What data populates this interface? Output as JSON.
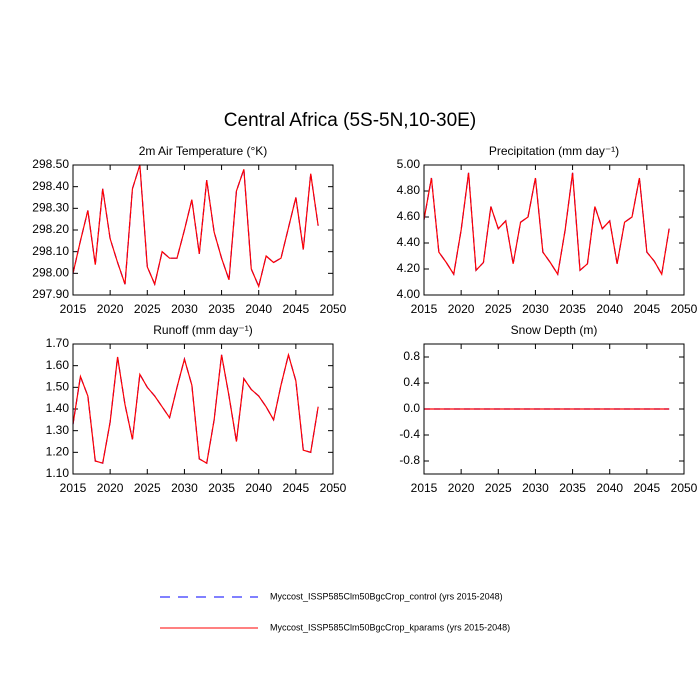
{
  "title": "Central Africa (5S-5N,10-30E)",
  "legend": [
    {
      "name": "Myccost_ISSP585Clm50BgcCrop_control (yrs 2015-2048)",
      "color": "#0000ff",
      "dashed": true
    },
    {
      "name": "Myccost_ISSP585Clm50BgcCrop_kparams (yrs 2015-2048)",
      "color": "#ff0000",
      "dashed": false
    }
  ],
  "chart_data": [
    {
      "type": "line",
      "title": "2m Air Temperature (°K)",
      "x": [
        2015,
        2016,
        2017,
        2018,
        2019,
        2020,
        2021,
        2022,
        2023,
        2024,
        2025,
        2026,
        2027,
        2028,
        2029,
        2030,
        2031,
        2032,
        2033,
        2034,
        2035,
        2036,
        2037,
        2038,
        2039,
        2040,
        2041,
        2042,
        2043,
        2044,
        2045,
        2046,
        2047,
        2048
      ],
      "series": [
        {
          "values": [
            298.0,
            298.15,
            298.29,
            298.04,
            298.39,
            298.16,
            298.05,
            297.95,
            298.39,
            298.5,
            298.03,
            297.95,
            298.1,
            298.07,
            298.07,
            298.2,
            298.34,
            298.09,
            298.43,
            298.19,
            298.07,
            297.97,
            298.38,
            298.48,
            298.02,
            297.94,
            298.08,
            298.05,
            298.07,
            298.21,
            298.35,
            298.11,
            298.46,
            298.22
          ]
        },
        {
          "values": [
            298.0,
            298.15,
            298.29,
            298.04,
            298.39,
            298.16,
            298.05,
            297.95,
            298.39,
            298.5,
            298.03,
            297.95,
            298.1,
            298.07,
            298.07,
            298.2,
            298.34,
            298.09,
            298.43,
            298.19,
            298.07,
            297.97,
            298.38,
            298.48,
            298.02,
            297.94,
            298.08,
            298.05,
            298.07,
            298.21,
            298.35,
            298.11,
            298.46,
            298.22
          ]
        }
      ],
      "xlim": [
        2015,
        2050
      ],
      "xticks": [
        2015,
        2020,
        2025,
        2030,
        2035,
        2040,
        2045,
        2050
      ],
      "ylim": [
        297.9,
        298.5
      ],
      "yticks": [
        {
          "value": 297.9,
          "label": "297.90"
        },
        {
          "value": 298.0,
          "label": "298.00"
        },
        {
          "value": 298.1,
          "label": "298.10"
        },
        {
          "value": 298.2,
          "label": "298.20"
        },
        {
          "value": 298.3,
          "label": "298.30"
        },
        {
          "value": 298.4,
          "label": "298.40"
        },
        {
          "value": 298.5,
          "label": "298.50"
        }
      ]
    },
    {
      "type": "line",
      "title": "Precipitation (mm day⁻¹)",
      "x": [
        2015,
        2016,
        2017,
        2018,
        2019,
        2020,
        2021,
        2022,
        2023,
        2024,
        2025,
        2026,
        2027,
        2028,
        2029,
        2030,
        2031,
        2032,
        2033,
        2034,
        2035,
        2036,
        2037,
        2038,
        2039,
        2040,
        2041,
        2042,
        2043,
        2044,
        2045,
        2046,
        2047,
        2048
      ],
      "series": [
        {
          "values": [
            4.58,
            4.9,
            4.33,
            4.25,
            4.16,
            4.5,
            4.94,
            4.19,
            4.25,
            4.68,
            4.51,
            4.57,
            4.24,
            4.56,
            4.6,
            4.9,
            4.33,
            4.25,
            4.16,
            4.5,
            4.94,
            4.19,
            4.24,
            4.68,
            4.51,
            4.57,
            4.24,
            4.56,
            4.6,
            4.9,
            4.33,
            4.26,
            4.16,
            4.51
          ]
        },
        {
          "values": [
            4.58,
            4.9,
            4.33,
            4.25,
            4.16,
            4.5,
            4.94,
            4.19,
            4.25,
            4.68,
            4.51,
            4.57,
            4.24,
            4.56,
            4.6,
            4.9,
            4.33,
            4.25,
            4.16,
            4.5,
            4.94,
            4.19,
            4.24,
            4.68,
            4.51,
            4.57,
            4.24,
            4.56,
            4.6,
            4.9,
            4.33,
            4.26,
            4.16,
            4.51
          ]
        }
      ],
      "xlim": [
        2015,
        2050
      ],
      "xticks": [
        2015,
        2020,
        2025,
        2030,
        2035,
        2040,
        2045,
        2050
      ],
      "ylim": [
        4.0,
        5.0
      ],
      "yticks": [
        {
          "value": 4.0,
          "label": "4.00"
        },
        {
          "value": 4.2,
          "label": "4.20"
        },
        {
          "value": 4.4,
          "label": "4.40"
        },
        {
          "value": 4.6,
          "label": "4.60"
        },
        {
          "value": 4.8,
          "label": "4.80"
        },
        {
          "value": 5.0,
          "label": "5.00"
        }
      ]
    },
    {
      "type": "line",
      "title": "Runoff (mm day⁻¹)",
      "x": [
        2015,
        2016,
        2017,
        2018,
        2019,
        2020,
        2021,
        2022,
        2023,
        2024,
        2025,
        2026,
        2027,
        2028,
        2029,
        2030,
        2031,
        2032,
        2033,
        2034,
        2035,
        2036,
        2037,
        2038,
        2039,
        2040,
        2041,
        2042,
        2043,
        2044,
        2045,
        2046,
        2047,
        2048
      ],
      "series": [
        {
          "values": [
            1.33,
            1.55,
            1.46,
            1.16,
            1.15,
            1.34,
            1.64,
            1.42,
            1.26,
            1.56,
            1.5,
            1.46,
            1.41,
            1.36,
            1.5,
            1.63,
            1.51,
            1.17,
            1.15,
            1.35,
            1.65,
            1.46,
            1.25,
            1.54,
            1.49,
            1.46,
            1.41,
            1.35,
            1.51,
            1.65,
            1.53,
            1.21,
            1.2,
            1.41
          ]
        },
        {
          "values": [
            1.33,
            1.55,
            1.46,
            1.16,
            1.15,
            1.34,
            1.64,
            1.42,
            1.26,
            1.56,
            1.5,
            1.46,
            1.41,
            1.36,
            1.5,
            1.63,
            1.51,
            1.17,
            1.15,
            1.35,
            1.65,
            1.46,
            1.25,
            1.54,
            1.49,
            1.46,
            1.41,
            1.35,
            1.51,
            1.65,
            1.53,
            1.21,
            1.2,
            1.41
          ]
        }
      ],
      "xlim": [
        2015,
        2050
      ],
      "xticks": [
        2015,
        2020,
        2025,
        2030,
        2035,
        2040,
        2045,
        2050
      ],
      "ylim": [
        1.1,
        1.7
      ],
      "yticks": [
        {
          "value": 1.1,
          "label": "1.10"
        },
        {
          "value": 1.2,
          "label": "1.20"
        },
        {
          "value": 1.3,
          "label": "1.30"
        },
        {
          "value": 1.4,
          "label": "1.40"
        },
        {
          "value": 1.5,
          "label": "1.50"
        },
        {
          "value": 1.6,
          "label": "1.60"
        },
        {
          "value": 1.7,
          "label": "1.70"
        }
      ]
    },
    {
      "type": "line",
      "title": "Snow Depth (m)",
      "x": [
        2015,
        2016,
        2017,
        2018,
        2019,
        2020,
        2021,
        2022,
        2023,
        2024,
        2025,
        2026,
        2027,
        2028,
        2029,
        2030,
        2031,
        2032,
        2033,
        2034,
        2035,
        2036,
        2037,
        2038,
        2039,
        2040,
        2041,
        2042,
        2043,
        2044,
        2045,
        2046,
        2047,
        2048
      ],
      "series": [
        {
          "values": [
            0,
            0,
            0,
            0,
            0,
            0,
            0,
            0,
            0,
            0,
            0,
            0,
            0,
            0,
            0,
            0,
            0,
            0,
            0,
            0,
            0,
            0,
            0,
            0,
            0,
            0,
            0,
            0,
            0,
            0,
            0,
            0,
            0,
            0
          ]
        },
        {
          "values": [
            0,
            0,
            0,
            0,
            0,
            0,
            0,
            0,
            0,
            0,
            0,
            0,
            0,
            0,
            0,
            0,
            0,
            0,
            0,
            0,
            0,
            0,
            0,
            0,
            0,
            0,
            0,
            0,
            0,
            0,
            0,
            0,
            0,
            0
          ]
        }
      ],
      "xlim": [
        2015,
        2050
      ],
      "xticks": [
        2015,
        2020,
        2025,
        2030,
        2035,
        2040,
        2045,
        2050
      ],
      "ylim": [
        -1,
        1
      ],
      "yticks": [
        -0.8,
        -0.4,
        {
          "value": 0,
          "label": "0.0"
        },
        0.4,
        0.8
      ]
    }
  ]
}
